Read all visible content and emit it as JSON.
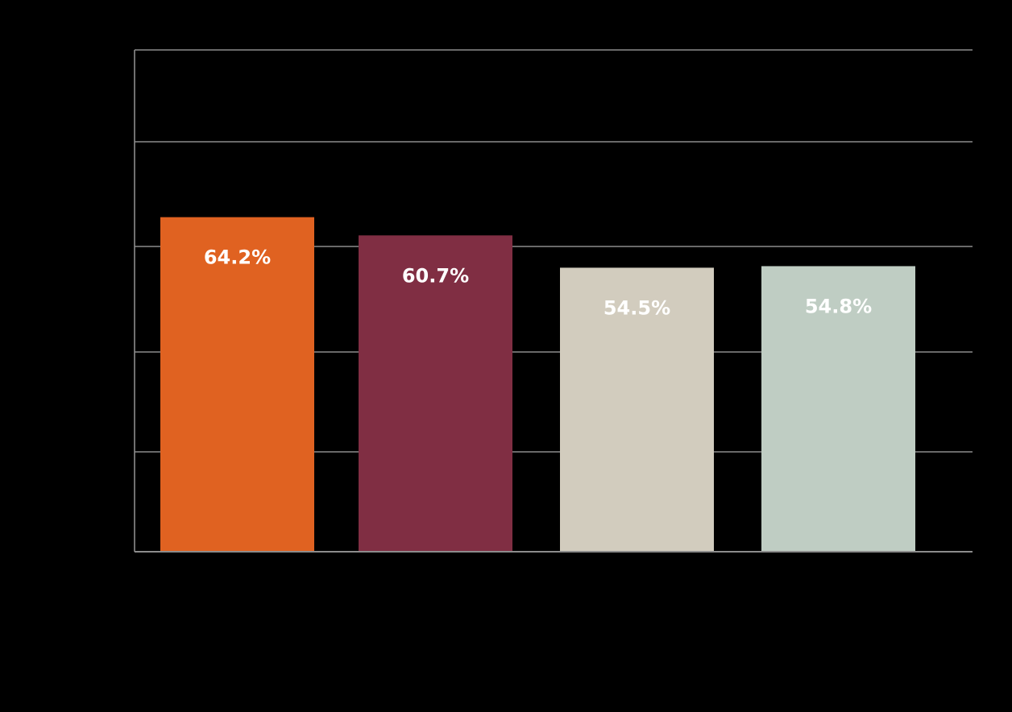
{
  "chart_data": {
    "type": "bar",
    "title": "",
    "xlabel": "",
    "ylabel": "",
    "categories": [
      "",
      "",
      "",
      ""
    ],
    "values": [
      64.2,
      60.7,
      54.5,
      54.8
    ],
    "value_labels": [
      "64.2%",
      "60.7%",
      "54.5%",
      "54.8%"
    ],
    "colors": [
      "#e06221",
      "#802e43",
      "#d2ccbe",
      "#bfcdc3"
    ],
    "label_color": "#ffffff",
    "background": "#000000",
    "grid_color": "#8c8c8c",
    "grid": true,
    "legend": "none"
  }
}
